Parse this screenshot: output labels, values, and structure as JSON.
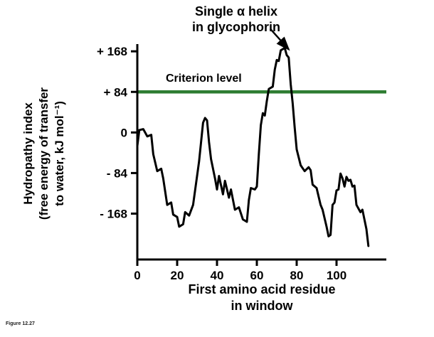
{
  "figure_caption": "Figure 12.27",
  "colors": {
    "curve": "#000000",
    "criterion_line": "#2e7d32",
    "text": "#000000",
    "background": "#ffffff"
  },
  "chart_data": {
    "type": "line",
    "title": "",
    "xlabel_lines": [
      "First amino acid residue",
      "in window"
    ],
    "ylabel_lines": [
      "Hydropathy index",
      "(free energy of transfer",
      "to water, kJ mol⁻¹)"
    ],
    "xlim": [
      0,
      125
    ],
    "ylim": [
      -263,
      183
    ],
    "grid": false,
    "x_ticks": [
      0,
      20,
      40,
      60,
      80,
      100
    ],
    "y_ticks": [
      {
        "value": 168,
        "label": "+ 168"
      },
      {
        "value": 84,
        "label": "+ 84"
      },
      {
        "value": 0,
        "label": "0"
      },
      {
        "value": -84,
        "label": "- 84"
      },
      {
        "value": -168,
        "label": "- 168"
      }
    ],
    "criterion": {
      "value": 84,
      "label": "Criterion level"
    },
    "annotation": {
      "lines": [
        "Single α helix",
        "in glycophorin"
      ],
      "points_to_x": 76,
      "points_to_y": 172
    },
    "series": [
      {
        "name": "hydropathy",
        "x": [
          0,
          1,
          3,
          5,
          7,
          8,
          10,
          12,
          13,
          15,
          17,
          18,
          20,
          21,
          23,
          24,
          26,
          28,
          29,
          31,
          33,
          34,
          35,
          36,
          37,
          39,
          40,
          41,
          43,
          44,
          46,
          47,
          49,
          51,
          53,
          55,
          56,
          57,
          59,
          60,
          61,
          62,
          63,
          64,
          65,
          66,
          68,
          69,
          70,
          71,
          72,
          74,
          75,
          76,
          77,
          78,
          79,
          80,
          82,
          84,
          86,
          87,
          88,
          90,
          92,
          93,
          95,
          96,
          97,
          98,
          99,
          100,
          101,
          102,
          103,
          104,
          105,
          106,
          107,
          108,
          109,
          110,
          112,
          113,
          115,
          116
        ],
        "y": [
          -28,
          5,
          7,
          -8,
          -5,
          -45,
          -80,
          -75,
          -95,
          -150,
          -145,
          -170,
          -175,
          -195,
          -190,
          -165,
          -172,
          -150,
          -120,
          -60,
          20,
          30,
          25,
          -20,
          -55,
          -95,
          -118,
          -90,
          -128,
          -100,
          -135,
          -118,
          -160,
          -155,
          -180,
          -185,
          -140,
          -115,
          -118,
          -112,
          -45,
          15,
          40,
          35,
          65,
          90,
          95,
          130,
          150,
          148,
          170,
          175,
          160,
          155,
          100,
          60,
          10,
          -35,
          -68,
          -80,
          -72,
          -78,
          -108,
          -115,
          -150,
          -160,
          -195,
          -215,
          -212,
          -150,
          -145,
          -120,
          -118,
          -85,
          -95,
          -112,
          -92,
          -100,
          -98,
          -112,
          -110,
          -150,
          -165,
          -160,
          -200,
          -235
        ]
      }
    ]
  }
}
